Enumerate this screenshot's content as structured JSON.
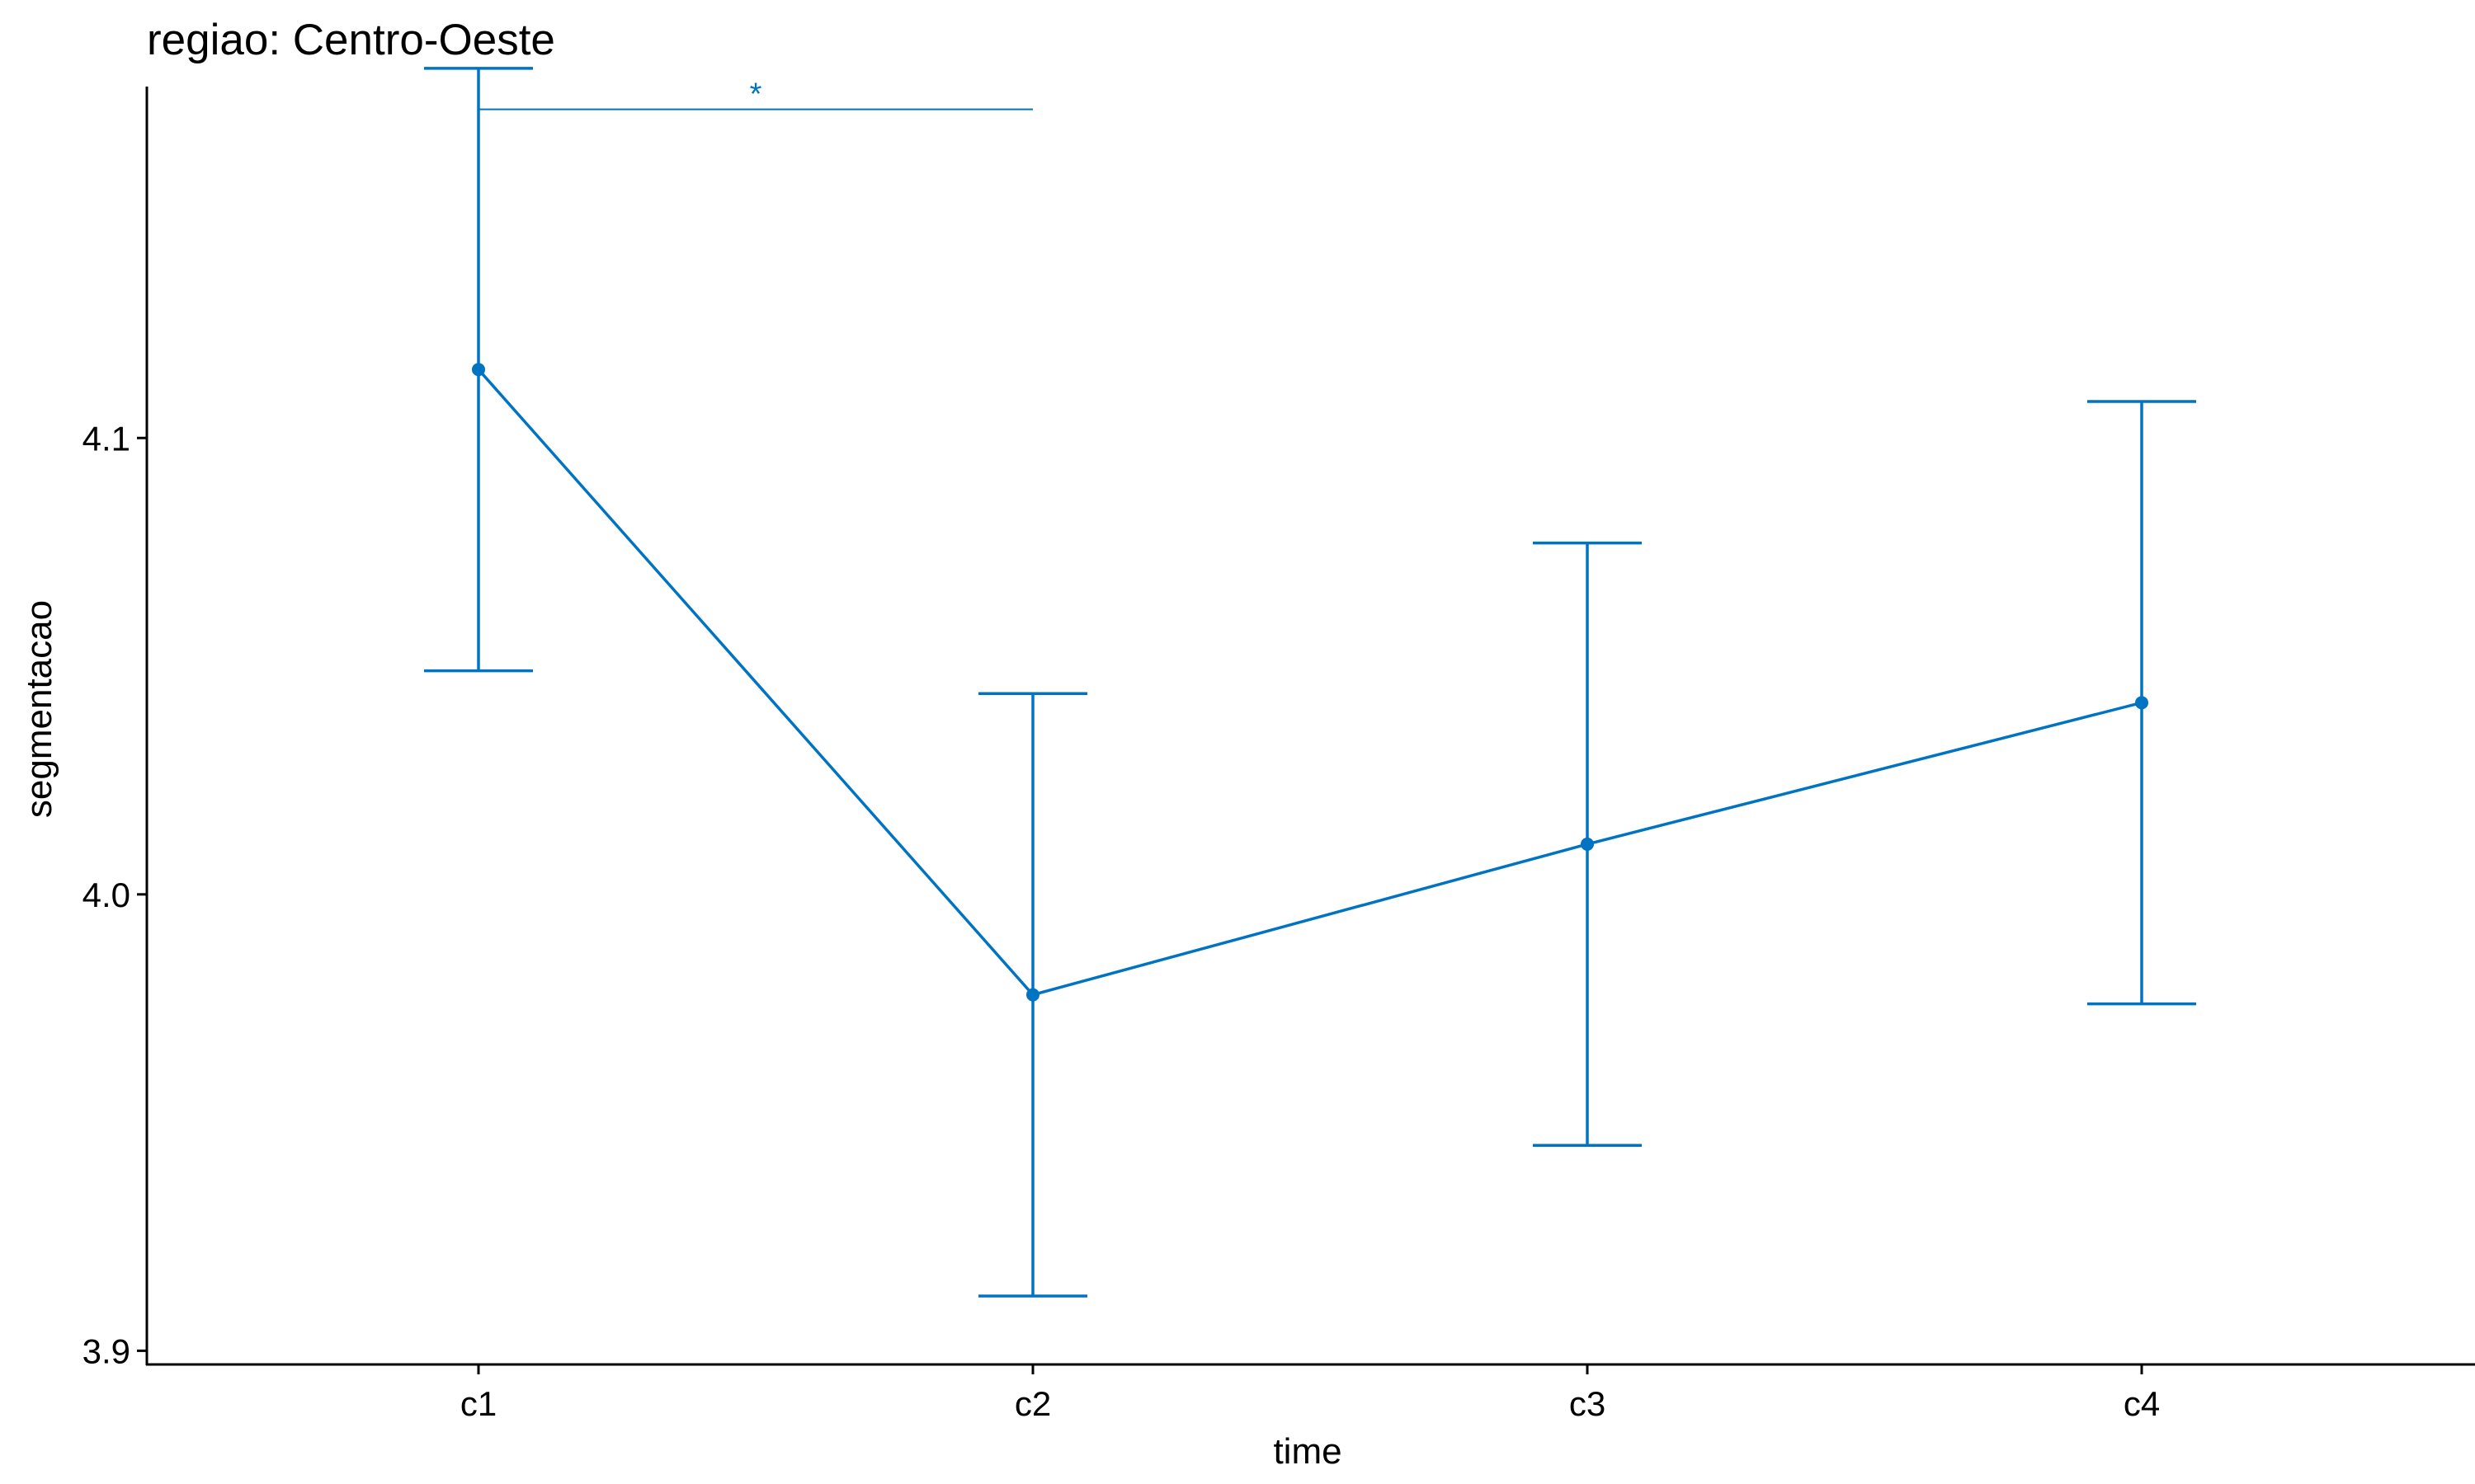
{
  "chart_data": {
    "type": "line",
    "title": "regiao: Centro-Oeste",
    "xlabel": "time",
    "ylabel": "segmentacao",
    "categories": [
      "c1",
      "c2",
      "c3",
      "c4"
    ],
    "ylim": [
      3.897,
      4.177
    ],
    "yticks": [
      3.9,
      4.0,
      4.1
    ],
    "ytick_labels": [
      "3.9",
      "4.0",
      "4.1"
    ],
    "grid": false,
    "legend": "none",
    "series": [
      {
        "values": [
          4.115,
          3.978,
          4.011,
          4.042
        ],
        "error_low": [
          4.049,
          3.912,
          3.945,
          3.976
        ],
        "error_high": [
          4.181,
          4.044,
          4.077,
          4.108
        ],
        "color": "#0073C2"
      }
    ],
    "annotations": [
      {
        "from": "c1",
        "to": "c2",
        "y": 4.172,
        "label": "*"
      }
    ]
  }
}
